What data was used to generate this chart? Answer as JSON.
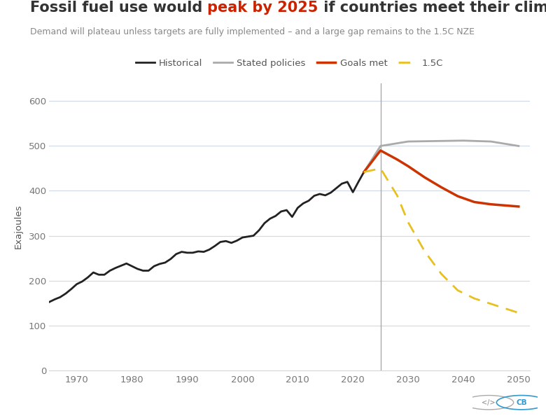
{
  "title_plain": "Fossil fuel use would ",
  "title_highlight": "peak by 2025",
  "title_end": " if countries meet their climate goals",
  "subtitle": "Demand will plateau unless targets are fully implemented – and a large gap remains to the 1.5C NZE",
  "ylabel": "Exajoules",
  "background_color": "#ffffff",
  "plot_bg_color": "#ffffff",
  "grid_color": "#d0d8e4",
  "title_color": "#333333",
  "highlight_color": "#cc2200",
  "subtitle_color": "#888888",
  "vline_x": 2025,
  "vline_color": "#aaaaaa",
  "historical": {
    "years": [
      1965,
      1966,
      1967,
      1968,
      1969,
      1970,
      1971,
      1972,
      1973,
      1974,
      1975,
      1976,
      1977,
      1978,
      1979,
      1980,
      1981,
      1982,
      1983,
      1984,
      1985,
      1986,
      1987,
      1988,
      1989,
      1990,
      1991,
      1992,
      1993,
      1994,
      1995,
      1996,
      1997,
      1998,
      1999,
      2000,
      2001,
      2002,
      2003,
      2004,
      2005,
      2006,
      2007,
      2008,
      2009,
      2010,
      2011,
      2012,
      2013,
      2014,
      2015,
      2016,
      2017,
      2018,
      2019,
      2020,
      2021,
      2022
    ],
    "values": [
      152,
      158,
      163,
      171,
      181,
      192,
      198,
      207,
      218,
      213,
      213,
      222,
      228,
      233,
      238,
      232,
      226,
      222,
      222,
      232,
      237,
      240,
      248,
      259,
      264,
      262,
      262,
      265,
      264,
      269,
      277,
      286,
      288,
      284,
      289,
      296,
      298,
      300,
      312,
      328,
      338,
      344,
      354,
      357,
      342,
      362,
      372,
      378,
      389,
      393,
      390,
      396,
      406,
      416,
      420,
      397,
      420,
      442
    ],
    "color": "#222222",
    "linewidth": 2.0
  },
  "stated_policies": {
    "years": [
      2022,
      2025,
      2030,
      2035,
      2040,
      2045,
      2050
    ],
    "values": [
      442,
      500,
      510,
      511,
      512,
      510,
      500
    ],
    "color": "#aaaaaa",
    "linewidth": 2.0
  },
  "goals_met": {
    "years": [
      2022,
      2025,
      2028,
      2030,
      2033,
      2036,
      2039,
      2042,
      2045,
      2047,
      2050
    ],
    "values": [
      442,
      490,
      470,
      455,
      430,
      408,
      388,
      375,
      370,
      368,
      365
    ],
    "color": "#cc3300",
    "linewidth": 2.5
  },
  "nze_1p5": {
    "years": [
      2022,
      2025,
      2028,
      2030,
      2033,
      2036,
      2039,
      2042,
      2045,
      2047,
      2050
    ],
    "values": [
      442,
      450,
      390,
      330,
      265,
      215,
      178,
      160,
      148,
      140,
      128
    ],
    "color": "#e8c020",
    "linewidth": 2.0,
    "linestyle": "dashed"
  },
  "legend": {
    "historical_label": "Historical",
    "stated_label": "Stated policies",
    "goals_label": "Goals met",
    "nze_label": "1.5C",
    "historical_color": "#222222",
    "stated_color": "#aaaaaa",
    "goals_color": "#cc3300",
    "nze_color": "#e8c020"
  },
  "ylim": [
    0,
    640
  ],
  "xlim": [
    1965,
    2052
  ],
  "yticks": [
    0,
    100,
    200,
    300,
    400,
    500,
    600
  ],
  "xticks": [
    1970,
    1980,
    1990,
    2000,
    2010,
    2020,
    2030,
    2040,
    2050
  ]
}
